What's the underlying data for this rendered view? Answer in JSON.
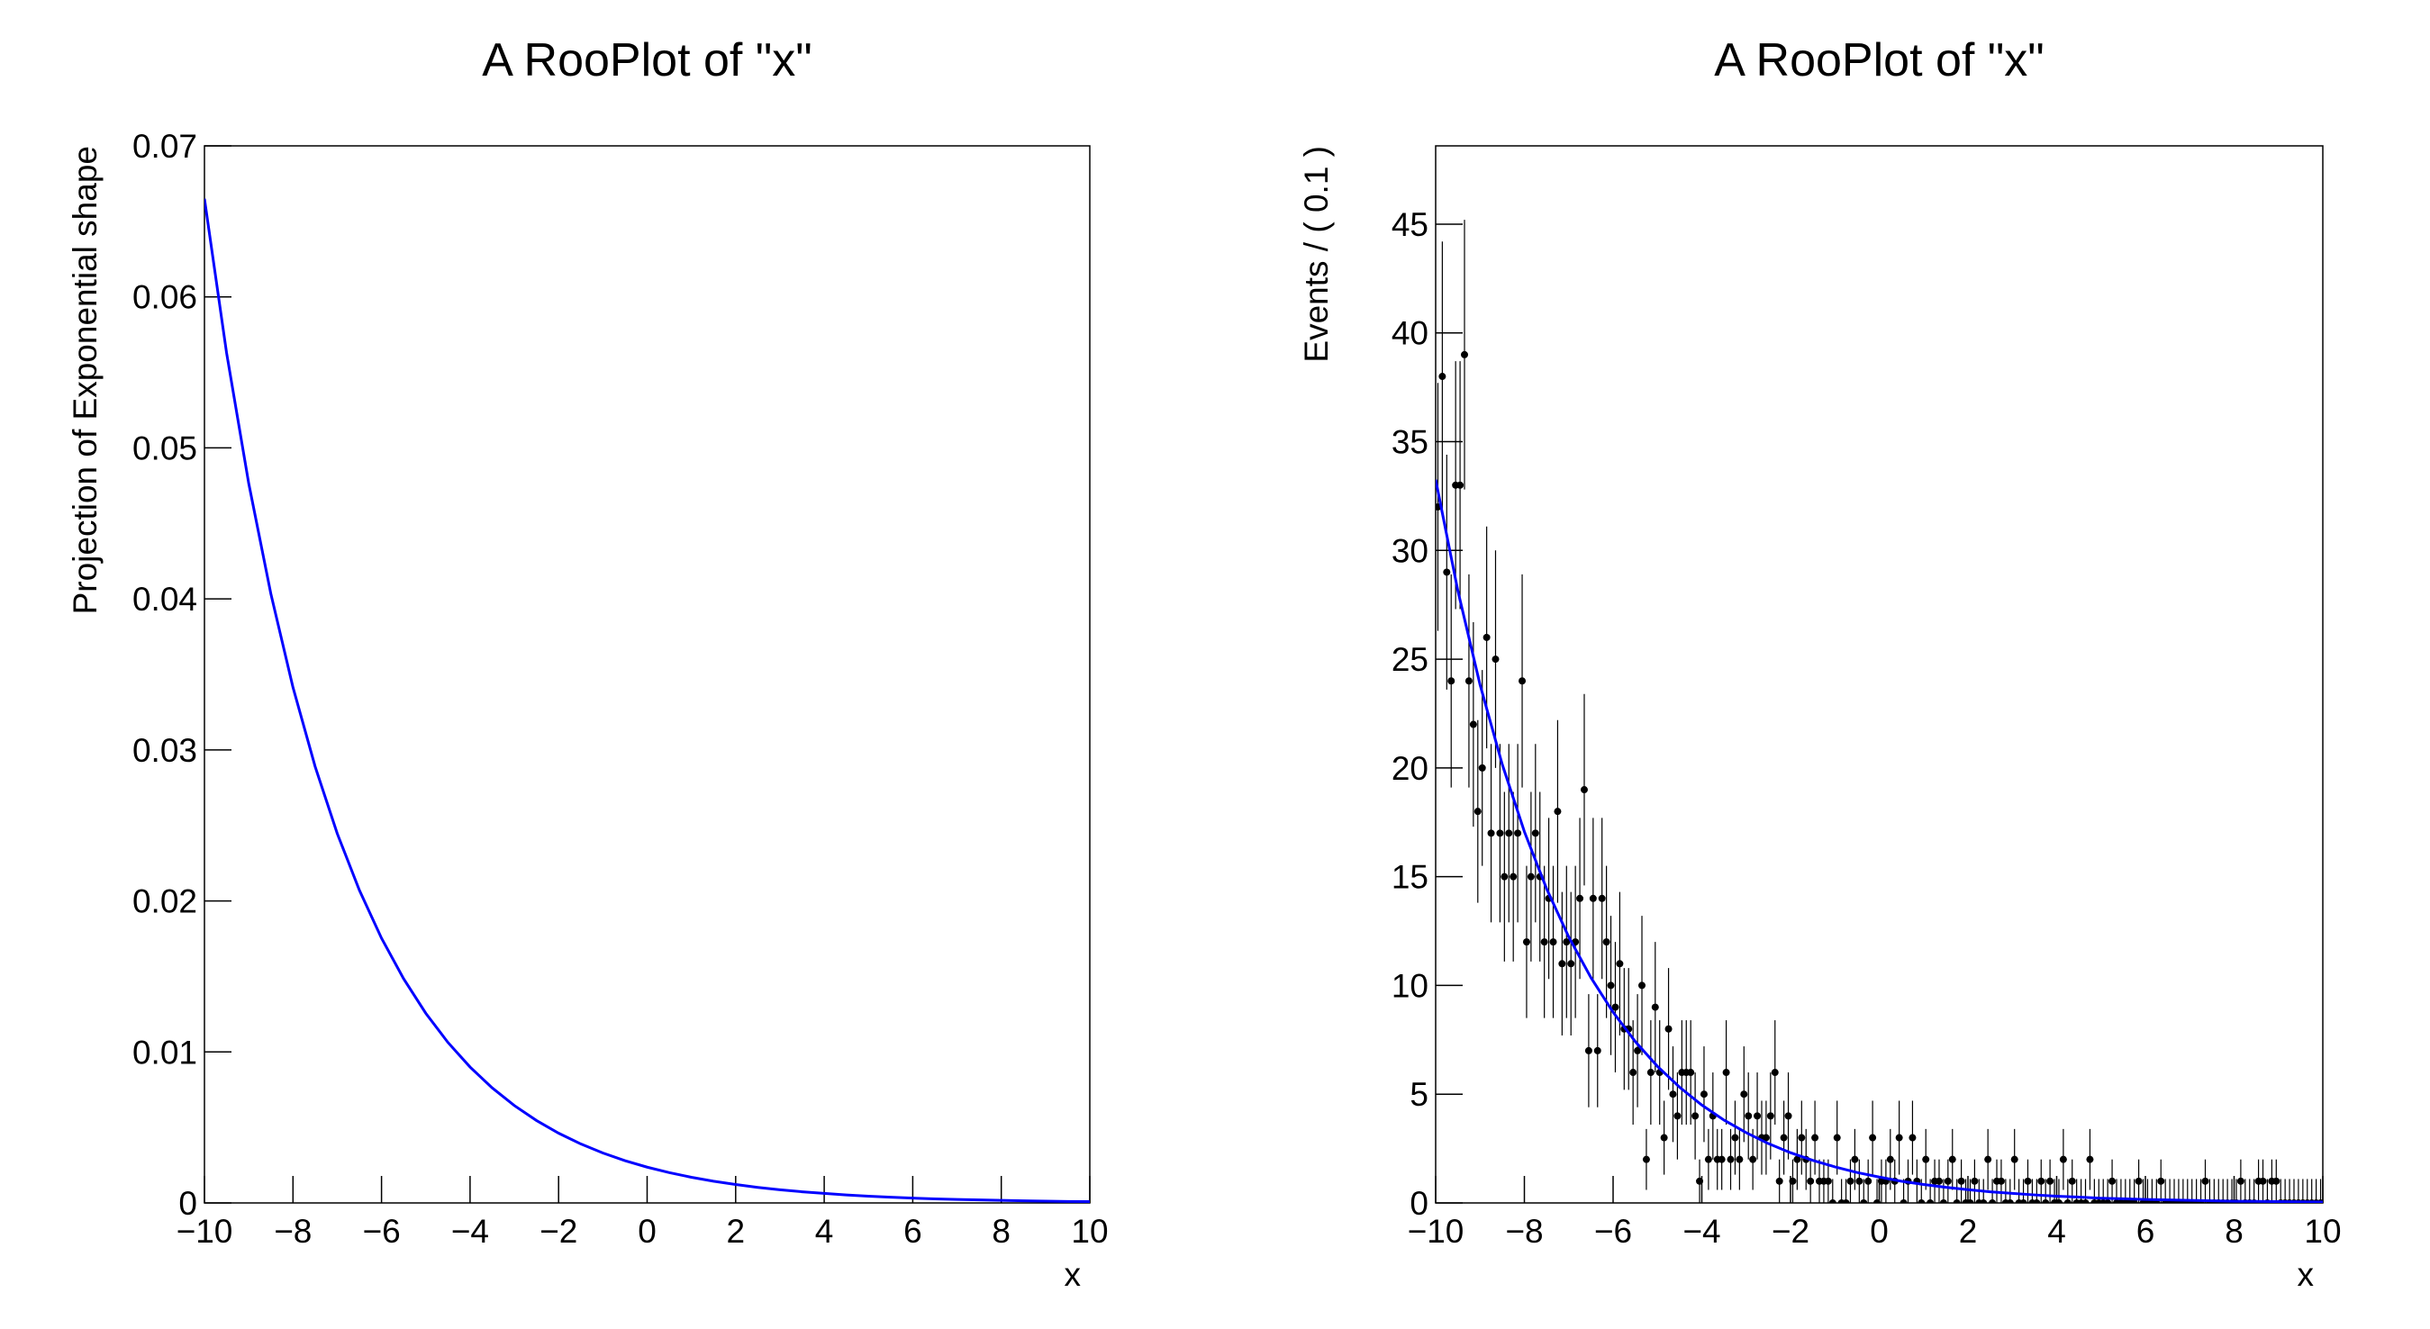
{
  "chart_data": [
    {
      "type": "line",
      "title": "A RooPlot of \"x\"",
      "x_label": "x",
      "y_label": "Projection of Exponential shape",
      "color": "#0000ff",
      "xlim": [
        -10,
        10
      ],
      "ylim": [
        0,
        0.07
      ],
      "xticks": [
        {
          "value": -10,
          "label": "−10"
        },
        {
          "value": -8,
          "label": "−8"
        },
        {
          "value": -6,
          "label": "−6"
        },
        {
          "value": -4,
          "label": "−4"
        },
        {
          "value": -2,
          "label": "−2"
        },
        0,
        2,
        4,
        6,
        8,
        10
      ],
      "yticks": [
        0,
        0.01,
        0.02,
        0.03,
        0.04,
        0.05,
        0.06,
        0.07
      ],
      "x": [
        -10,
        -9.5,
        -9,
        -8.5,
        -8,
        -7.5,
        -7,
        -6.5,
        -6,
        -5.5,
        -5,
        -4.5,
        -4,
        -3.5,
        -3,
        -2.5,
        -2,
        -1.5,
        -1,
        -0.5,
        0,
        0.5,
        1,
        1.5,
        2,
        2.5,
        3,
        3.5,
        4,
        4.5,
        5,
        5.5,
        6,
        6.5,
        7,
        7.5,
        8,
        8.5,
        9,
        9.5,
        10
      ],
      "values": [
        0.0665,
        0.05629,
        0.04765,
        0.04034,
        0.03414,
        0.0289,
        0.02446,
        0.02071,
        0.01753,
        0.01484,
        0.01256,
        0.01063,
        0.009,
        0.00762,
        0.00645,
        0.00546,
        0.00462,
        0.00391,
        0.00331,
        0.0028,
        0.00237,
        0.00201,
        0.0017,
        0.00144,
        0.00122,
        0.00103,
        0.00087,
        0.00074,
        0.00063,
        0.00053,
        0.00045,
        0.00038,
        0.00032,
        0.00027,
        0.00023,
        0.0002,
        0.00017,
        0.00014,
        0.00012,
        0.0001,
        9e-05
      ]
    },
    {
      "type": "errorbar",
      "title": "A RooPlot of \"x\"",
      "x_label": "x",
      "y_label": "Events / ( 0.1 )",
      "color": "#000000",
      "fit_color": "#0000ff",
      "xlim": [
        -10,
        10
      ],
      "ylim": [
        0,
        48.6
      ],
      "xticks": [
        {
          "value": -10,
          "label": "−10"
        },
        {
          "value": -8,
          "label": "−8"
        },
        {
          "value": -6,
          "label": "−6"
        },
        {
          "value": -4,
          "label": "−4"
        },
        {
          "value": -2,
          "label": "−2"
        },
        0,
        2,
        4,
        6,
        8,
        10
      ],
      "yticks": [
        0,
        5,
        10,
        15,
        20,
        25,
        30,
        35,
        40,
        45
      ],
      "x": [
        -9.95,
        -9.85,
        -9.75,
        -9.65,
        -9.55,
        -9.45,
        -9.35,
        -9.25,
        -9.15,
        -9.05,
        -8.95,
        -8.85,
        -8.75,
        -8.65,
        -8.55,
        -8.45,
        -8.35,
        -8.25,
        -8.15,
        -8.05,
        -7.95,
        -7.85,
        -7.75,
        -7.65,
        -7.55,
        -7.45,
        -7.35,
        -7.25,
        -7.15,
        -7.05,
        -6.95,
        -6.85,
        -6.75,
        -6.65,
        -6.55,
        -6.45,
        -6.35,
        -6.25,
        -6.15,
        -6.05,
        -5.95,
        -5.85,
        -5.75,
        -5.65,
        -5.55,
        -5.45,
        -5.35,
        -5.25,
        -5.15,
        -5.05,
        -4.95,
        -4.85,
        -4.75,
        -4.65,
        -4.55,
        -4.45,
        -4.35,
        -4.25,
        -4.15,
        -4.05,
        -3.95,
        -3.85,
        -3.75,
        -3.65,
        -3.55,
        -3.45,
        -3.35,
        -3.25,
        -3.15,
        -3.05,
        -2.95,
        -2.85,
        -2.75,
        -2.65,
        -2.55,
        -2.45,
        -2.35,
        -2.25,
        -2.15,
        -2.05,
        -1.95,
        -1.85,
        -1.75,
        -1.65,
        -1.55,
        -1.45,
        -1.35,
        -1.25,
        -1.15,
        -1.05,
        -0.95,
        -0.85,
        -0.75,
        -0.65,
        -0.55,
        -0.45,
        -0.35,
        -0.25,
        -0.15,
        -0.05,
        0.05,
        0.15,
        0.25,
        0.35,
        0.45,
        0.55,
        0.65,
        0.75,
        0.85,
        0.95,
        1.05,
        1.15,
        1.25,
        1.35,
        1.45,
        1.55,
        1.65,
        1.75,
        1.85,
        1.95,
        2.05,
        2.15,
        2.25,
        2.35,
        2.45,
        2.55,
        2.65,
        2.75,
        2.85,
        2.95,
        3.05,
        3.15,
        3.25,
        3.35,
        3.45,
        3.55,
        3.65,
        3.75,
        3.85,
        3.95,
        4.05,
        4.15,
        4.25,
        4.35,
        4.45,
        4.55,
        4.65,
        4.75,
        4.85,
        4.95,
        5.05,
        5.15,
        5.25,
        5.35,
        5.45,
        5.55,
        5.65,
        5.75,
        5.85,
        5.95,
        6.05,
        6.15,
        6.25,
        6.35,
        6.45,
        6.55,
        6.65,
        6.75,
        6.85,
        6.95,
        7.05,
        7.15,
        7.25,
        7.35,
        7.45,
        7.55,
        7.65,
        7.75,
        7.85,
        7.95,
        8.05,
        8.15,
        8.25,
        8.35,
        8.45,
        8.55,
        8.65,
        8.75,
        8.85,
        8.95,
        9.05,
        9.15,
        9.25,
        9.35,
        9.45,
        9.55,
        9.65,
        9.75,
        9.85,
        9.95
      ],
      "values": [
        32,
        38,
        29,
        24,
        33,
        33,
        39,
        24,
        22,
        18,
        20,
        26,
        17,
        25,
        17,
        15,
        17,
        15,
        17,
        24,
        12,
        15,
        17,
        15,
        12,
        14,
        12,
        18,
        11,
        12,
        11,
        12,
        14,
        19,
        7,
        14,
        7,
        14,
        12,
        10,
        9,
        11,
        8,
        8,
        6,
        7,
        10,
        2,
        6,
        9,
        6,
        3,
        8,
        5,
        4,
        6,
        6,
        6,
        4,
        1,
        5,
        2,
        4,
        2,
        2,
        6,
        2,
        3,
        2,
        5,
        4,
        2,
        4,
        3,
        3,
        4,
        6,
        1,
        3,
        4,
        1,
        2,
        3,
        2,
        1,
        3,
        1,
        1,
        1,
        0,
        3,
        0,
        0,
        1,
        2,
        1,
        0,
        1,
        3,
        0,
        1,
        1,
        2,
        1,
        3,
        0,
        1,
        3,
        1,
        0,
        2,
        0,
        1,
        1,
        0,
        1,
        2,
        0,
        1,
        0,
        0,
        1,
        0,
        0,
        2,
        0,
        1,
        1,
        0,
        0,
        2,
        0,
        0,
        1,
        0,
        0,
        1,
        0,
        1,
        0,
        0,
        2,
        0,
        1,
        0,
        0,
        0,
        2,
        0,
        0,
        0,
        0,
        1,
        0,
        0,
        0,
        0,
        0,
        1,
        0,
        0,
        0,
        0,
        1,
        0,
        0,
        0,
        0,
        0,
        0,
        0,
        0,
        0,
        1,
        0,
        0,
        0,
        0,
        0,
        0,
        0,
        1,
        0,
        0,
        0,
        1,
        1,
        0,
        1,
        1,
        0,
        0,
        0,
        0,
        0,
        0,
        0,
        0,
        0,
        0
      ],
      "errors": [
        5.7,
        6.2,
        5.4,
        4.9,
        5.7,
        5.7,
        6.2,
        4.9,
        4.7,
        4.2,
        4.5,
        5.1,
        4.1,
        5,
        4.1,
        3.9,
        4.1,
        3.9,
        4.1,
        4.9,
        3.5,
        3.9,
        4.1,
        3.9,
        3.5,
        3.7,
        3.5,
        4.2,
        3.3,
        3.5,
        3.3,
        3.5,
        3.7,
        4.4,
        2.6,
        3.7,
        2.6,
        3.7,
        3.5,
        3.2,
        3,
        3.3,
        2.8,
        2.8,
        2.4,
        2.6,
        3.2,
        1.4,
        2.4,
        3,
        2.4,
        1.7,
        2.8,
        2.2,
        2,
        2.4,
        2.4,
        2.4,
        2,
        1,
        2.2,
        1.4,
        2,
        1.4,
        1.4,
        2.4,
        1.4,
        1.7,
        1.4,
        2.2,
        2,
        1.4,
        2,
        1.7,
        1.7,
        2,
        2.4,
        1,
        1.7,
        2,
        1,
        1.4,
        1.7,
        1.4,
        1,
        1.7,
        1,
        1,
        1,
        1.1,
        1.7,
        1.1,
        1.1,
        1,
        1.4,
        1,
        1.1,
        1,
        1.7,
        1.1,
        1,
        1,
        1.4,
        1,
        1.7,
        1.1,
        1,
        1.7,
        1,
        1.1,
        1.4,
        1.1,
        1,
        1,
        1.1,
        1,
        1.4,
        1.1,
        1,
        1.1,
        1.1,
        1,
        1.1,
        1.1,
        1.4,
        1.1,
        1,
        1,
        1.1,
        1.1,
        1.4,
        1.1,
        1.1,
        1,
        1.1,
        1.1,
        1,
        1.1,
        1,
        1.1,
        1.1,
        1.4,
        1.1,
        1,
        1.1,
        1.1,
        1.1,
        1.4,
        1.1,
        1.1,
        1.1,
        1.1,
        1,
        1.1,
        1.1,
        1.1,
        1.1,
        1.1,
        1,
        1.1,
        1.1,
        1.1,
        1.1,
        1,
        1.1,
        1.1,
        1.1,
        1.1,
        1.1,
        1.1,
        1.1,
        1.1,
        1.1,
        1,
        1.1,
        1.1,
        1.1,
        1.1,
        1.1,
        1.1,
        1.1,
        1,
        1.1,
        1.1,
        1.1,
        1,
        1,
        1.1,
        1,
        1,
        1.1,
        1.1,
        1.1,
        1.1,
        1.1,
        1.1,
        1.1,
        1.1,
        1.1,
        1.1
      ],
      "fit_x": [
        -10,
        -9.5,
        -9,
        -8.5,
        -8,
        -7.5,
        -7,
        -6.5,
        -6,
        -5.5,
        -5,
        -4.5,
        -4,
        -3.5,
        -3,
        -2.5,
        -2,
        -1.5,
        -1,
        -0.5,
        0,
        0.5,
        1,
        1.5,
        2,
        2.5,
        3,
        3.5,
        4,
        4.5,
        5,
        5.5,
        6,
        6.5,
        7,
        7.5,
        8,
        8.5,
        9,
        9.5,
        10
      ],
      "fit_values": [
        33.25,
        28.15,
        23.83,
        20.17,
        17.07,
        14.45,
        12.23,
        10.36,
        8.77,
        7.42,
        6.28,
        5.32,
        4.5,
        3.81,
        3.23,
        2.73,
        2.31,
        1.96,
        1.66,
        1.4,
        1.19,
        1.0,
        0.85,
        0.72,
        0.61,
        0.51,
        0.44,
        0.37,
        0.31,
        0.27,
        0.22,
        0.19,
        0.16,
        0.14,
        0.12,
        0.1,
        0.08,
        0.07,
        0.06,
        0.05,
        0.04
      ]
    }
  ]
}
